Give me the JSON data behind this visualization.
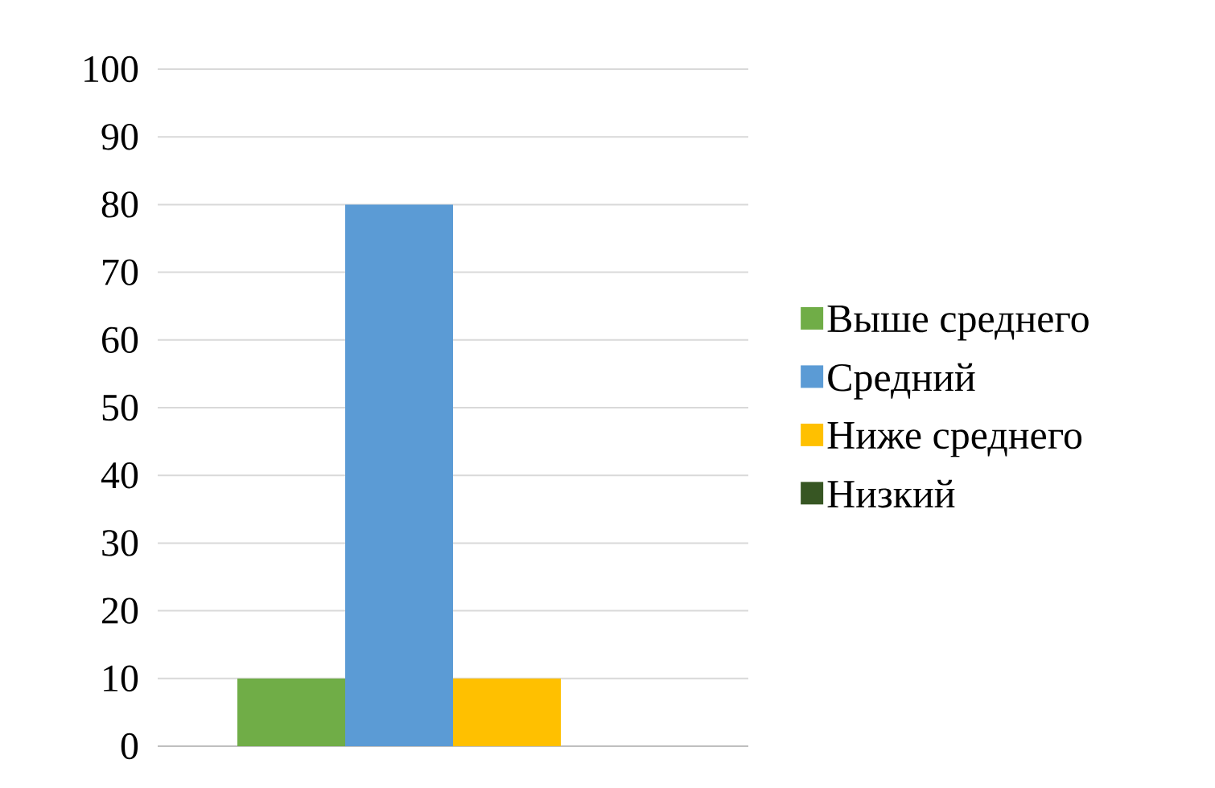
{
  "chart_data": {
    "type": "bar",
    "categories": [
      null
    ],
    "series": [
      {
        "name": "Выше среднего",
        "color": "#70ad47",
        "values": [
          10
        ]
      },
      {
        "name": "Средний",
        "color": "#5b9bd5",
        "values": [
          80
        ]
      },
      {
        "name": "Ниже среднего",
        "color": "#ffc000",
        "values": [
          10
        ]
      },
      {
        "name": "Низкий",
        "color": "#375623",
        "values": [
          0
        ]
      }
    ],
    "ylim": [
      0,
      100
    ],
    "yticks": [
      0,
      10,
      20,
      30,
      40,
      50,
      60,
      70,
      80,
      90,
      100
    ],
    "grid": "y",
    "legend": "right"
  }
}
